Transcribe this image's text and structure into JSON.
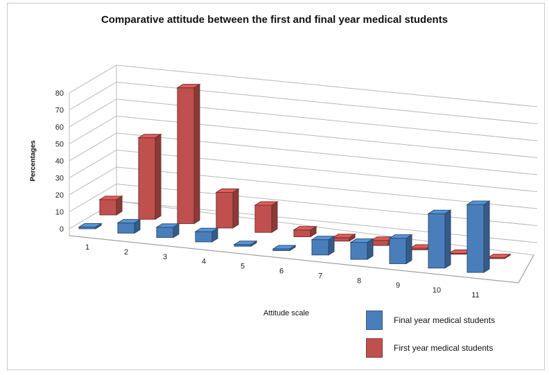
{
  "chart_data": {
    "type": "bar",
    "title": "Comparative attitude between the first and final year medical students",
    "xlabel": "Attitude scale",
    "ylabel": "Percentages",
    "ylim": [
      0,
      80
    ],
    "yticks": [
      "0",
      "10",
      "20",
      "30",
      "40",
      "50",
      "60",
      "70",
      "80"
    ],
    "categories": [
      "1",
      "2",
      "3",
      "4",
      "5",
      "6",
      "7",
      "8",
      "9",
      "10",
      "11"
    ],
    "series": [
      {
        "name": "Final year medical students",
        "color": "#4a7ebb",
        "values": [
          1,
          6,
          6,
          6,
          1,
          1,
          9,
          10,
          15,
          32,
          40
        ]
      },
      {
        "name": "First year medical students",
        "color": "#c0504d",
        "values": [
          9,
          48,
          80,
          21,
          16,
          4,
          2,
          3,
          1,
          0.5,
          0.5
        ]
      }
    ],
    "legend": "bottom-right",
    "grid": true
  }
}
